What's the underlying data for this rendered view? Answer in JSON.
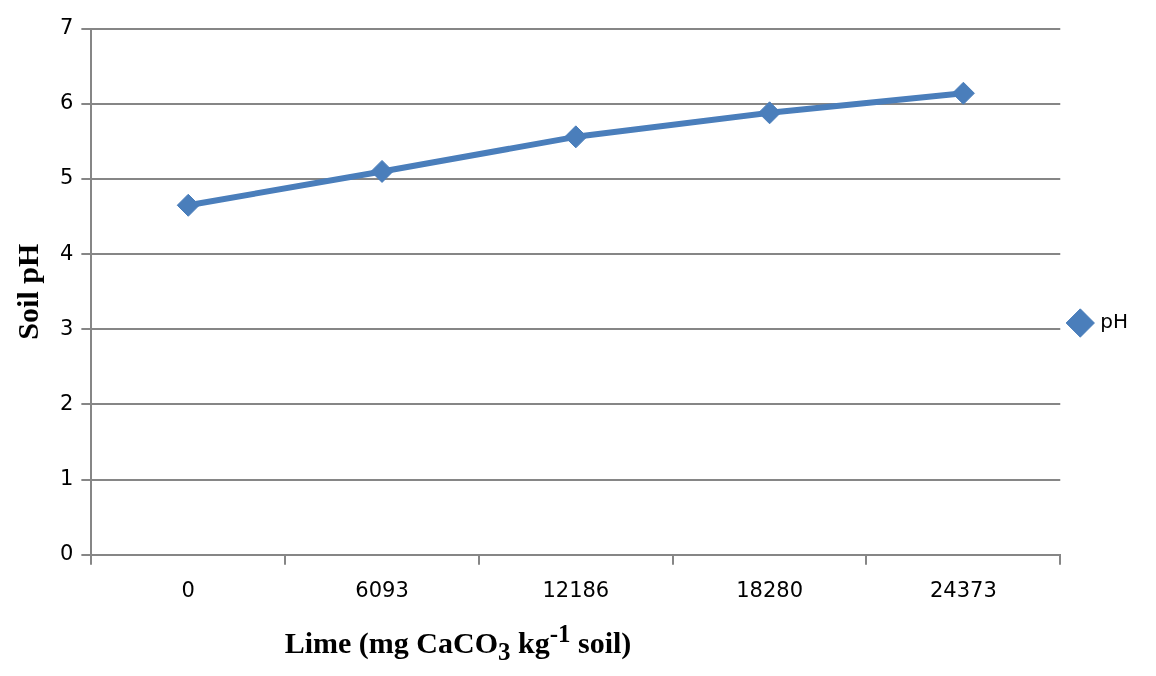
{
  "chart_data": {
    "type": "line",
    "xlabel": "Lime (mg CaCO$_{3}$ kg$^{-1}$ soil)",
    "ylabel": "Soil pH",
    "categories": [
      "0",
      "6093",
      "12186",
      "18280",
      "24373"
    ],
    "series": [
      {
        "name": "pH",
        "color": "#4a7ebb",
        "values": [
          4.65,
          5.1,
          5.56,
          5.88,
          6.14
        ]
      }
    ],
    "ylim": [
      0,
      7
    ],
    "yticks": [
      0,
      1,
      2,
      3,
      4,
      5,
      6,
      7
    ],
    "grid": "y",
    "legend": "right",
    "marker": "diamond",
    "line_style": "solid"
  }
}
